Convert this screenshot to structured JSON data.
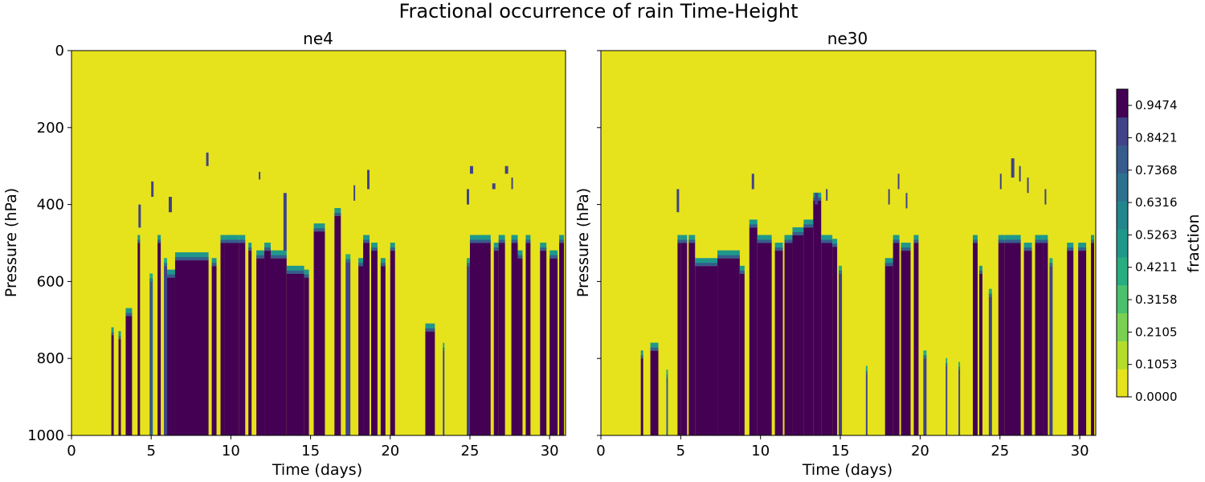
{
  "figure": {
    "title": "Fractional occurrence of rain Time-Height"
  },
  "chart_data": [
    {
      "type": "heatmap",
      "title": "ne4",
      "xlabel": "Time (days)",
      "ylabel": "Pressure (hPa)",
      "xlim": [
        0,
        31
      ],
      "ylim": [
        1000,
        0
      ],
      "xticks": [
        0,
        5,
        10,
        15,
        20,
        25,
        30
      ],
      "yticks": [
        0,
        200,
        400,
        600,
        800,
        1000
      ],
      "background_value": 0.0,
      "rain_columns": [
        [
          2.5,
          2.65,
          740,
          1
        ],
        [
          2.95,
          3.1,
          750,
          1
        ],
        [
          3.4,
          3.8,
          690,
          1
        ],
        [
          4.15,
          4.3,
          500,
          1
        ],
        [
          4.9,
          5.1,
          600,
          0.8
        ],
        [
          5.4,
          5.6,
          500,
          1
        ],
        [
          5.8,
          6.0,
          560,
          0.9
        ],
        [
          6.0,
          6.5,
          590,
          1
        ],
        [
          6.5,
          8.6,
          545,
          1
        ],
        [
          8.8,
          9.1,
          560,
          1
        ],
        [
          9.35,
          9.6,
          500,
          1
        ],
        [
          9.6,
          10.5,
          500,
          1
        ],
        [
          10.5,
          10.9,
          500,
          1
        ],
        [
          11.1,
          11.3,
          520,
          1
        ],
        [
          11.6,
          12.1,
          540,
          1
        ],
        [
          12.1,
          12.5,
          520,
          1
        ],
        [
          12.5,
          13.5,
          540,
          1
        ],
        [
          13.5,
          14.6,
          580,
          1
        ],
        [
          14.6,
          14.9,
          590,
          1
        ],
        [
          15.2,
          15.9,
          470,
          1
        ],
        [
          16.5,
          16.9,
          430,
          1
        ],
        [
          17.2,
          17.5,
          550,
          0.9
        ],
        [
          18.0,
          18.3,
          560,
          1
        ],
        [
          18.3,
          18.7,
          500,
          1
        ],
        [
          18.8,
          19.2,
          520,
          1
        ],
        [
          19.4,
          19.7,
          560,
          1
        ],
        [
          20.0,
          20.3,
          520,
          1
        ],
        [
          22.2,
          22.8,
          730,
          1
        ],
        [
          23.3,
          23.4,
          780,
          0.9
        ],
        [
          24.8,
          25.0,
          560,
          0.9
        ],
        [
          25.0,
          26.3,
          500,
          1
        ],
        [
          26.5,
          26.8,
          520,
          1
        ],
        [
          26.8,
          27.2,
          500,
          1
        ],
        [
          27.6,
          28.0,
          500,
          1
        ],
        [
          28.0,
          28.3,
          540,
          1
        ],
        [
          28.5,
          28.8,
          500,
          1
        ],
        [
          29.4,
          29.8,
          520,
          1
        ],
        [
          30.0,
          30.5,
          540,
          1
        ],
        [
          30.6,
          30.9,
          500,
          1
        ]
      ],
      "rain_patches": [
        [
          4.2,
          4.35,
          400,
          460
        ],
        [
          5.0,
          5.15,
          340,
          380
        ],
        [
          6.1,
          6.3,
          380,
          420
        ],
        [
          8.45,
          8.6,
          265,
          300
        ],
        [
          11.75,
          11.85,
          315,
          335
        ],
        [
          13.3,
          13.5,
          370,
          520
        ],
        [
          17.7,
          17.8,
          350,
          390
        ],
        [
          18.55,
          18.7,
          310,
          360
        ],
        [
          24.8,
          24.95,
          360,
          400
        ],
        [
          25.0,
          25.2,
          300,
          320
        ],
        [
          26.4,
          26.6,
          345,
          360
        ],
        [
          27.2,
          27.4,
          300,
          320
        ],
        [
          27.6,
          27.7,
          330,
          360
        ]
      ]
    },
    {
      "type": "heatmap",
      "title": "ne30",
      "xlabel": "Time (days)",
      "ylabel": "Pressure (hPa)",
      "xlim": [
        0,
        31
      ],
      "ylim": [
        1000,
        0
      ],
      "xticks": [
        0,
        5,
        10,
        15,
        20,
        25,
        30
      ],
      "yticks": [
        0,
        200,
        400,
        600,
        800,
        1000
      ],
      "background_value": 0.0,
      "rain_columns": [
        [
          2.5,
          2.65,
          800,
          1
        ],
        [
          3.1,
          3.6,
          780,
          1
        ],
        [
          4.1,
          4.2,
          850,
          0.8
        ],
        [
          4.8,
          5.0,
          500,
          1
        ],
        [
          5.0,
          5.4,
          500,
          1
        ],
        [
          5.5,
          5.9,
          500,
          1
        ],
        [
          5.9,
          7.3,
          560,
          1
        ],
        [
          7.3,
          8.7,
          540,
          1
        ],
        [
          8.7,
          9.0,
          580,
          1
        ],
        [
          9.3,
          9.8,
          460,
          1
        ],
        [
          9.8,
          10.7,
          500,
          1
        ],
        [
          10.9,
          11.4,
          520,
          1
        ],
        [
          11.5,
          12.0,
          500,
          1
        ],
        [
          12.0,
          12.7,
          480,
          1
        ],
        [
          12.7,
          13.3,
          460,
          1
        ],
        [
          13.3,
          13.8,
          390,
          1
        ],
        [
          13.8,
          14.5,
          500,
          1
        ],
        [
          14.5,
          14.8,
          510,
          1
        ],
        [
          14.9,
          15.1,
          580,
          0.9
        ],
        [
          16.6,
          16.7,
          840,
          0.9
        ],
        [
          17.8,
          18.3,
          560,
          1
        ],
        [
          18.3,
          18.7,
          500,
          1
        ],
        [
          18.8,
          19.4,
          520,
          1
        ],
        [
          19.6,
          19.9,
          500,
          1
        ],
        [
          20.2,
          20.4,
          800,
          0.9
        ],
        [
          21.6,
          21.7,
          820,
          0.9
        ],
        [
          22.4,
          22.5,
          830,
          0.9
        ],
        [
          23.3,
          23.6,
          500,
          1
        ],
        [
          23.7,
          23.9,
          580,
          1
        ],
        [
          24.3,
          24.5,
          640,
          0.9
        ],
        [
          24.9,
          25.3,
          500,
          1
        ],
        [
          25.3,
          26.3,
          500,
          1
        ],
        [
          26.5,
          27.0,
          520,
          1
        ],
        [
          27.2,
          27.7,
          500,
          1
        ],
        [
          27.7,
          28.0,
          500,
          1
        ],
        [
          28.1,
          28.3,
          560,
          0.9
        ],
        [
          29.2,
          29.6,
          520,
          1
        ],
        [
          29.9,
          30.4,
          520,
          1
        ],
        [
          30.7,
          30.9,
          500,
          1
        ]
      ],
      "rain_patches": [
        [
          4.75,
          4.9,
          360,
          420
        ],
        [
          9.45,
          9.6,
          320,
          360
        ],
        [
          13.4,
          13.6,
          370,
          400
        ],
        [
          14.1,
          14.2,
          360,
          390
        ],
        [
          18.0,
          18.1,
          360,
          400
        ],
        [
          18.6,
          18.7,
          320,
          360
        ],
        [
          19.1,
          19.2,
          370,
          410
        ],
        [
          25.0,
          25.1,
          320,
          360
        ],
        [
          25.7,
          25.9,
          280,
          330
        ],
        [
          26.2,
          26.3,
          300,
          340
        ],
        [
          26.7,
          26.8,
          330,
          370
        ],
        [
          27.8,
          27.9,
          360,
          400
        ]
      ]
    }
  ],
  "colorbar": {
    "label": "fraction",
    "tick_labels": [
      "0.0000",
      "0.1053",
      "0.2105",
      "0.3158",
      "0.4211",
      "0.5263",
      "0.6316",
      "0.7368",
      "0.8421",
      "0.9474"
    ],
    "colors": [
      "#e6e31c",
      "#b4dd2b",
      "#7ad151",
      "#4ac16d",
      "#27ad81",
      "#1f988b",
      "#23868d",
      "#2c728e",
      "#365c8d",
      "#404387",
      "#440154"
    ]
  }
}
